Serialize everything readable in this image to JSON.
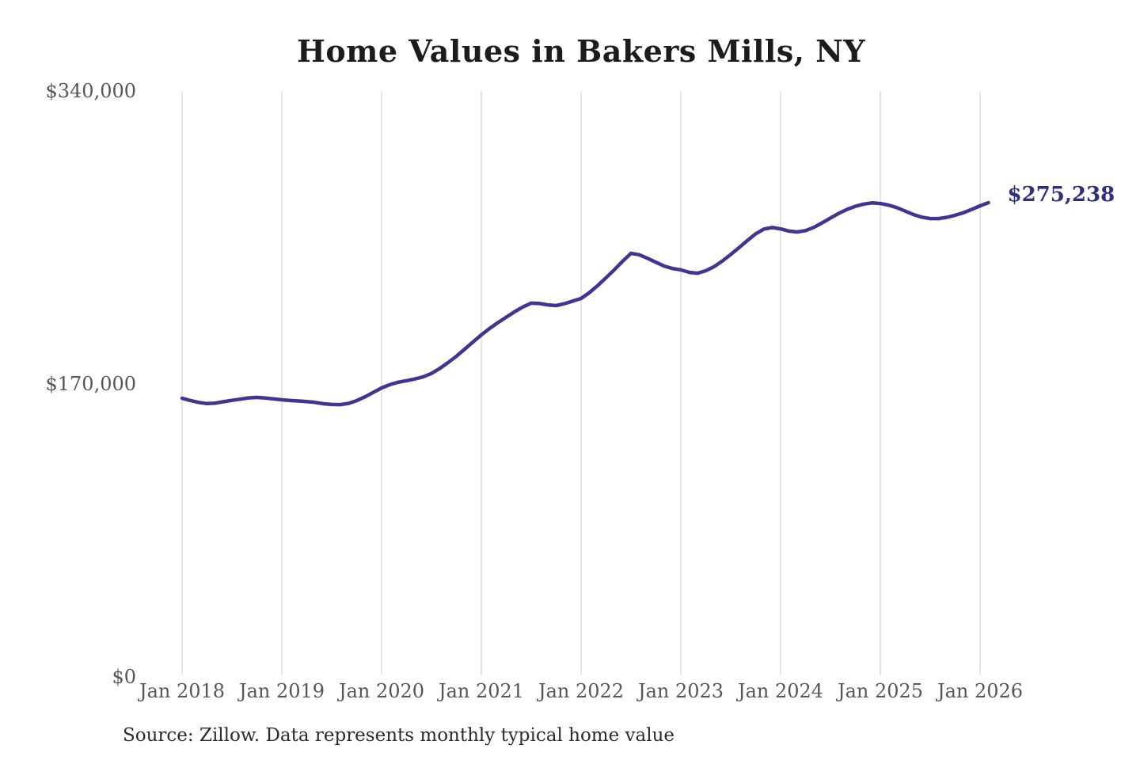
{
  "chart_data": {
    "type": "line",
    "title": "Home Values in Bakers Mills, NY",
    "source_note": "Source: Zillow. Data represents monthly typical home value",
    "series_name": "Monthly typical home value",
    "annotation_label": "$275,238",
    "latest_value": 275238,
    "xlabel": "",
    "ylabel": "",
    "ylim": [
      0,
      340000
    ],
    "grid": "vertical-only",
    "legend": "none",
    "line_color": "#3d3692",
    "annotation_color": "#2d2f7f",
    "gridline_color": "#cbcbcb",
    "tick_label_color": "#565656",
    "x_tick_labels": [
      "Jan 2018",
      "Jan 2019",
      "Jan 2020",
      "Jan 2021",
      "Jan 2022",
      "Jan 2023",
      "Jan 2024",
      "Jan 2025",
      "Jan 2026"
    ],
    "x_tick_indices": [
      0,
      12,
      24,
      36,
      48,
      60,
      72,
      84,
      96
    ],
    "y_ticks": [
      {
        "value": 0,
        "label": "$0"
      },
      {
        "value": 170000,
        "label": "$170,000"
      },
      {
        "value": 340000,
        "label": "$340,000"
      }
    ],
    "months": [
      "2018-01",
      "2018-02",
      "2018-03",
      "2018-04",
      "2018-05",
      "2018-06",
      "2018-07",
      "2018-08",
      "2018-09",
      "2018-10",
      "2018-11",
      "2018-12",
      "2019-01",
      "2019-02",
      "2019-03",
      "2019-04",
      "2019-05",
      "2019-06",
      "2019-07",
      "2019-08",
      "2019-09",
      "2019-10",
      "2019-11",
      "2019-12",
      "2020-01",
      "2020-02",
      "2020-03",
      "2020-04",
      "2020-05",
      "2020-06",
      "2020-07",
      "2020-08",
      "2020-09",
      "2020-10",
      "2020-11",
      "2020-12",
      "2021-01",
      "2021-02",
      "2021-03",
      "2021-04",
      "2021-05",
      "2021-06",
      "2021-07",
      "2021-08",
      "2021-09",
      "2021-10",
      "2021-11",
      "2021-12",
      "2022-01",
      "2022-02",
      "2022-03",
      "2022-04",
      "2022-05",
      "2022-06",
      "2022-07",
      "2022-08",
      "2022-09",
      "2022-10",
      "2022-11",
      "2022-12",
      "2023-01",
      "2023-02",
      "2023-03",
      "2023-04",
      "2023-05",
      "2023-06",
      "2023-07",
      "2023-08",
      "2023-09",
      "2023-10",
      "2023-11",
      "2023-12",
      "2024-01",
      "2024-02",
      "2024-03",
      "2024-04",
      "2024-05",
      "2024-06",
      "2024-07",
      "2024-08",
      "2024-09",
      "2024-10",
      "2024-11",
      "2024-12",
      "2025-01",
      "2025-02",
      "2025-03",
      "2025-04",
      "2025-05",
      "2025-06",
      "2025-07",
      "2025-08",
      "2025-09",
      "2025-10",
      "2025-11",
      "2025-12",
      "2026-01",
      "2026-02"
    ],
    "values": [
      161700,
      160400,
      159300,
      158600,
      158900,
      159700,
      160500,
      161200,
      161900,
      162200,
      161800,
      161300,
      160800,
      160400,
      160100,
      159800,
      159300,
      158500,
      158100,
      158000,
      158700,
      160300,
      162500,
      165100,
      167700,
      169600,
      171000,
      171900,
      172900,
      174100,
      176100,
      179000,
      182400,
      186100,
      190200,
      194400,
      198500,
      202200,
      205600,
      208800,
      211900,
      214700,
      216900,
      216700,
      215900,
      215500,
      216600,
      218100,
      219600,
      223000,
      227100,
      231600,
      236300,
      241200,
      245800,
      245000,
      242900,
      240600,
      238400,
      237000,
      236200,
      234800,
      234300,
      235700,
      238100,
      241400,
      245100,
      249100,
      253200,
      257100,
      259900,
      260800,
      260000,
      258700,
      258200,
      259000,
      260900,
      263500,
      266300,
      269000,
      271300,
      273100,
      274400,
      275100,
      274700,
      273800,
      272300,
      270300,
      268300,
      266800,
      266000,
      266000,
      266700,
      267900,
      269400,
      271300,
      273400,
      275238
    ]
  }
}
